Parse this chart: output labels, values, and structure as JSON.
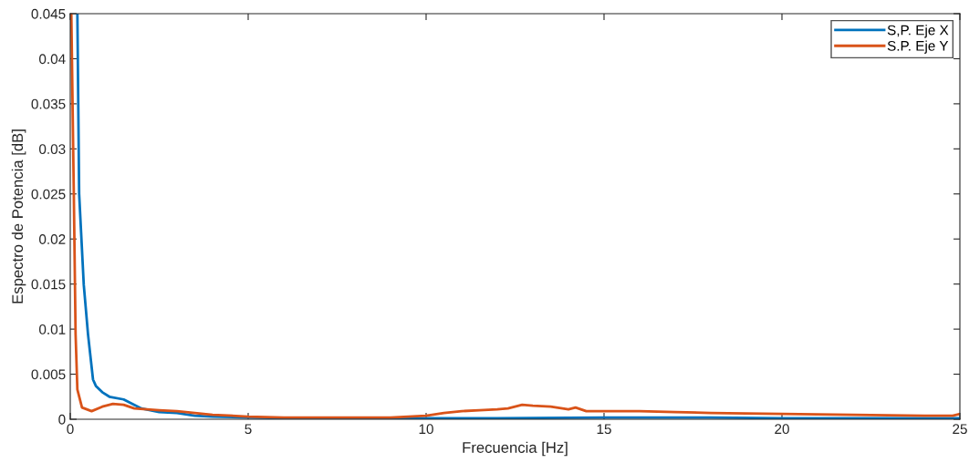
{
  "chart_data": {
    "type": "line",
    "xlabel": "Frecuencia [Hz]",
    "ylabel": "Espectro de Potencia [dB]",
    "xlim": [
      0,
      25
    ],
    "xticks": [
      0,
      5,
      10,
      15,
      20,
      25
    ],
    "ylim": [
      0,
      0.045
    ],
    "yticks": [
      0,
      0.005,
      0.01,
      0.015,
      0.02,
      0.025,
      0.03,
      0.035,
      0.04,
      0.045
    ],
    "grid": false,
    "legend": "top right",
    "marker": "none",
    "line_style": "solid",
    "series": [
      {
        "name": "S,P. Eje X",
        "color": "#0072bd",
        "x": [
          0.2,
          0.25,
          0.38,
          0.5,
          0.64,
          0.72,
          0.9,
          1.1,
          1.5,
          1.8,
          2.0,
          2.5,
          3.0,
          3.5,
          4.0,
          5.0,
          6.0,
          8.0,
          10.0,
          12.0,
          15.0,
          18.0,
          20.0,
          22.0,
          25.0
        ],
        "values": [
          0.045,
          0.025,
          0.0149,
          0.0094,
          0.0044,
          0.0037,
          0.003,
          0.0025,
          0.0022,
          0.0016,
          0.0012,
          0.0008,
          0.0007,
          0.0004,
          0.0003,
          0.0002,
          0.0001,
          0.0001,
          0.0001,
          0.0001,
          0.0002,
          0.0002,
          0.0001,
          0.0001,
          0.0001
        ]
      },
      {
        "name": "S.P. Eje Y",
        "color": "#d95319",
        "x": [
          0.03,
          0.1,
          0.15,
          0.2,
          0.33,
          0.6,
          0.9,
          1.2,
          1.5,
          1.8,
          2.5,
          3.0,
          4.0,
          5.0,
          6.0,
          7.0,
          8.0,
          9.0,
          9.5,
          10.0,
          10.5,
          11.0,
          11.5,
          12.0,
          12.3,
          12.7,
          13.0,
          13.5,
          14.0,
          14.2,
          14.5,
          15.0,
          16.0,
          17.0,
          18.0,
          20.0,
          22.0,
          24.0,
          24.8,
          25.0
        ],
        "values": [
          0.045,
          0.025,
          0.0094,
          0.0033,
          0.0013,
          0.0009,
          0.0014,
          0.0017,
          0.0016,
          0.0012,
          0.001,
          0.0009,
          0.0005,
          0.0003,
          0.0002,
          0.0002,
          0.0002,
          0.0002,
          0.0003,
          0.0004,
          0.0007,
          0.0009,
          0.001,
          0.0011,
          0.0012,
          0.0016,
          0.0015,
          0.0014,
          0.0011,
          0.0013,
          0.0009,
          0.0009,
          0.0009,
          0.0008,
          0.0007,
          0.0006,
          0.0005,
          0.0004,
          0.0004,
          0.0006
        ]
      }
    ]
  }
}
